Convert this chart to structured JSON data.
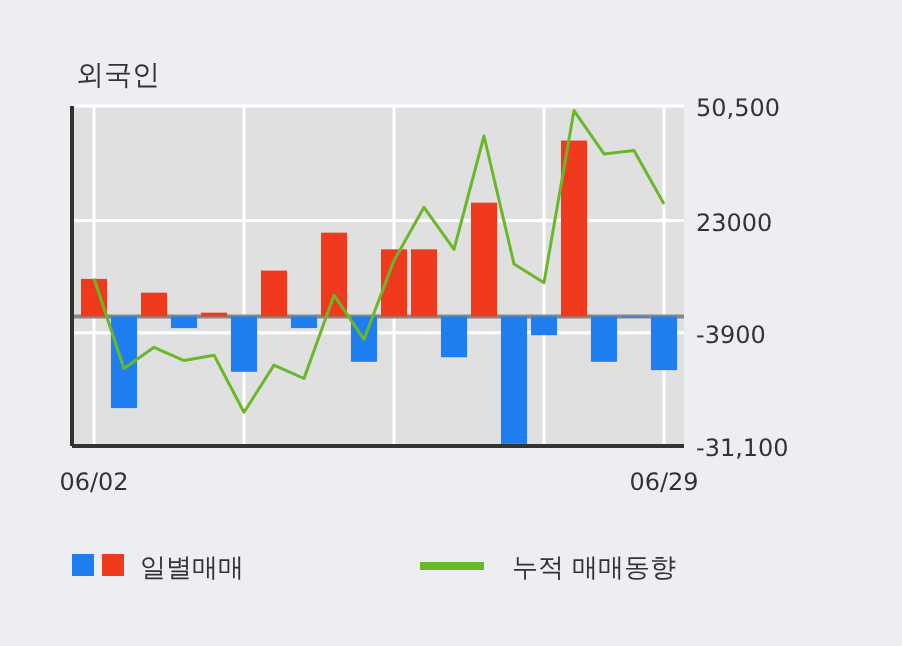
{
  "chart_data": {
    "type": "bar",
    "title": "외국인",
    "categories": [
      "06/02",
      null,
      null,
      null,
      null,
      null,
      null,
      null,
      null,
      null,
      null,
      null,
      null,
      null,
      null,
      null,
      null,
      null,
      null,
      "06/29"
    ],
    "series": [
      {
        "name": "일별매매",
        "values": [
          9000,
          -22000,
          5700,
          -2800,
          900,
          -13300,
          11000,
          -2800,
          20100,
          -10900,
          16100,
          16100,
          -9800,
          27300,
          -30600,
          -4500,
          42200,
          -10900,
          0,
          -12900
        ],
        "colors": [
          "#f03a1e",
          "#1e7ef0",
          "#f03a1e",
          "#1e7ef0",
          "#f03a1e",
          "#1e7ef0",
          "#f03a1e",
          "#1e7ef0",
          "#f03a1e",
          "#1e7ef0",
          "#f03a1e",
          "#f03a1e",
          "#1e7ef0",
          "#f03a1e",
          "#1e7ef0",
          "#1e7ef0",
          "#f03a1e",
          "#1e7ef0",
          "#1e7ef0",
          "#1e7ef0"
        ]
      },
      {
        "name": "누적 매매동향",
        "type": "line",
        "color": "#6ab82a",
        "values": [
          9100,
          -12500,
          -7400,
          -10600,
          -9300,
          -23000,
          -11700,
          -14900,
          5100,
          -5500,
          13400,
          26200,
          16100,
          43300,
          12600,
          8100,
          49400,
          39000,
          39800,
          27000
        ]
      }
    ],
    "ylim": [
      -31100,
      50500
    ],
    "yticks": [
      {
        "value": 50500,
        "label": "50,500"
      },
      23000,
      {
        "value": -3900,
        "label": "-3900"
      },
      {
        "value": -31100,
        "label": "-31,100"
      }
    ],
    "ref_lines": [
      {
        "axis": "y",
        "value": 0,
        "color": "#888888"
      }
    ],
    "grid": true,
    "legend": "bottom"
  }
}
